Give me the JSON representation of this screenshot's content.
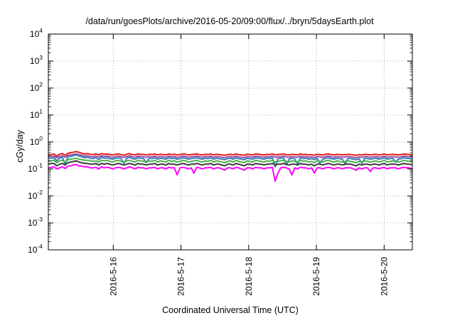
{
  "chart_data": {
    "type": "line",
    "title": "/data/run/goesPlots/archive/2016-05-20/09:00/flux/../bryn/5daysEarth.plot",
    "xlabel": "Coordinated Universal Time (UTC)",
    "ylabel": "cGy/day",
    "y_scale": "log",
    "ylim": [
      0.0001,
      10000
    ],
    "y_ticks": [
      {
        "base": "10",
        "exp": "-4",
        "value": 0.0001
      },
      {
        "base": "10",
        "exp": "-3",
        "value": 0.001
      },
      {
        "base": "10",
        "exp": "-2",
        "value": 0.01
      },
      {
        "base": "10",
        "exp": "-1",
        "value": 0.1
      },
      {
        "base": "10",
        "exp": "0",
        "value": 1
      },
      {
        "base": "10",
        "exp": "1",
        "value": 10
      },
      {
        "base": "10",
        "exp": "2",
        "value": 100
      },
      {
        "base": "10",
        "exp": "3",
        "value": 1000
      },
      {
        "base": "10",
        "exp": "4",
        "value": 10000
      }
    ],
    "xlim": [
      "2016-05-15 01:00",
      "2016-05-20 10:00"
    ],
    "x_ticks": [
      "2016-5-16",
      "2016-5-17",
      "2016-5-18",
      "2016-5-19",
      "2016-5-20"
    ],
    "grid": true,
    "series": [
      {
        "color": "#e41a1c",
        "base": 0.33,
        "step_hours": 1,
        "values": [
          0.33,
          0.34,
          0.36,
          0.3,
          0.35,
          0.37,
          0.32,
          0.38,
          0.4,
          0.42,
          0.44,
          0.41,
          0.38,
          0.36,
          0.37,
          0.35,
          0.34,
          0.36,
          0.33,
          0.37,
          0.35,
          0.36,
          0.34,
          0.33,
          0.35,
          0.36,
          0.34,
          0.32,
          0.35,
          0.37,
          0.34,
          0.33,
          0.36,
          0.35,
          0.34,
          0.33,
          0.35,
          0.34,
          0.36,
          0.33,
          0.35,
          0.34,
          0.33,
          0.36,
          0.34,
          0.35,
          0.33,
          0.34,
          0.36,
          0.35,
          0.33,
          0.34,
          0.35,
          0.36,
          0.34,
          0.33,
          0.35,
          0.34,
          0.36,
          0.33,
          0.35,
          0.34,
          0.33,
          0.32,
          0.34,
          0.35,
          0.33,
          0.36,
          0.34,
          0.33,
          0.32,
          0.35,
          0.34,
          0.33,
          0.36,
          0.35,
          0.34,
          0.33,
          0.35,
          0.34,
          0.36,
          0.33,
          0.34,
          0.35,
          0.36,
          0.34,
          0.33,
          0.35,
          0.34,
          0.33,
          0.36,
          0.34,
          0.35,
          0.33,
          0.34,
          0.32,
          0.35,
          0.34,
          0.33,
          0.35,
          0.36,
          0.34,
          0.33,
          0.35,
          0.34,
          0.33,
          0.34,
          0.35,
          0.34,
          0.33,
          0.32,
          0.34,
          0.33,
          0.35,
          0.34,
          0.33,
          0.34,
          0.35,
          0.33,
          0.34,
          0.36,
          0.33,
          0.34,
          0.35,
          0.34,
          0.33,
          0.34,
          0.36,
          0.35,
          0.34,
          0.33
        ]
      },
      {
        "color": "#984ea3",
        "base": 0.28,
        "step_hours": 1,
        "values": [
          0.28,
          0.29,
          0.3,
          0.26,
          0.29,
          0.31,
          0.27,
          0.32,
          0.33,
          0.35,
          0.36,
          0.34,
          0.32,
          0.3,
          0.31,
          0.29,
          0.28,
          0.3,
          0.27,
          0.31,
          0.29,
          0.3,
          0.28,
          0.27,
          0.29,
          0.3,
          0.28,
          0.27,
          0.29,
          0.31,
          0.28,
          0.27,
          0.3,
          0.29,
          0.28,
          0.27,
          0.29,
          0.28,
          0.3,
          0.27,
          0.29,
          0.28,
          0.27,
          0.3,
          0.28,
          0.29,
          0.27,
          0.28,
          0.3,
          0.29,
          0.27,
          0.28,
          0.29,
          0.3,
          0.28,
          0.27,
          0.29,
          0.28,
          0.3,
          0.27,
          0.29,
          0.28,
          0.27,
          0.26,
          0.28,
          0.29,
          0.27,
          0.3,
          0.28,
          0.27,
          0.26,
          0.29,
          0.28,
          0.27,
          0.3,
          0.29,
          0.28,
          0.27,
          0.29,
          0.28,
          0.3,
          0.27,
          0.28,
          0.29,
          0.3,
          0.28,
          0.27,
          0.29,
          0.28,
          0.27,
          0.3,
          0.28,
          0.29,
          0.27,
          0.28,
          0.26,
          0.29,
          0.28,
          0.27,
          0.29,
          0.3,
          0.28,
          0.27,
          0.29,
          0.28,
          0.27,
          0.28,
          0.29,
          0.28,
          0.27,
          0.26,
          0.28,
          0.27,
          0.29,
          0.28,
          0.27,
          0.28,
          0.29,
          0.27,
          0.28,
          0.3,
          0.27,
          0.28,
          0.29,
          0.28,
          0.27,
          0.28,
          0.3,
          0.29,
          0.28,
          0.27
        ]
      },
      {
        "color": "#377eb8",
        "base": 0.24,
        "step_hours": 1,
        "values": [
          0.24,
          0.25,
          0.26,
          0.2,
          0.25,
          0.27,
          0.15,
          0.28,
          0.29,
          0.31,
          0.33,
          0.3,
          0.28,
          0.26,
          0.27,
          0.25,
          0.24,
          0.26,
          0.22,
          0.27,
          0.25,
          0.26,
          0.24,
          0.23,
          0.25,
          0.26,
          0.24,
          0.16,
          0.25,
          0.27,
          0.24,
          0.23,
          0.26,
          0.25,
          0.24,
          0.17,
          0.25,
          0.24,
          0.26,
          0.23,
          0.25,
          0.24,
          0.23,
          0.26,
          0.24,
          0.25,
          0.23,
          0.24,
          0.26,
          0.25,
          0.23,
          0.24,
          0.25,
          0.26,
          0.24,
          0.23,
          0.25,
          0.24,
          0.26,
          0.23,
          0.25,
          0.24,
          0.23,
          0.22,
          0.24,
          0.25,
          0.23,
          0.26,
          0.24,
          0.23,
          0.22,
          0.25,
          0.24,
          0.23,
          0.26,
          0.25,
          0.24,
          0.23,
          0.25,
          0.24,
          0.26,
          0.12,
          0.24,
          0.25,
          0.26,
          0.14,
          0.23,
          0.25,
          0.24,
          0.15,
          0.26,
          0.24,
          0.25,
          0.23,
          0.24,
          0.22,
          0.25,
          0.16,
          0.23,
          0.25,
          0.26,
          0.24,
          0.23,
          0.25,
          0.24,
          0.23,
          0.15,
          0.25,
          0.24,
          0.23,
          0.22,
          0.24,
          0.16,
          0.25,
          0.24,
          0.23,
          0.24,
          0.25,
          0.23,
          0.24,
          0.26,
          0.23,
          0.24,
          0.25,
          0.18,
          0.23,
          0.24,
          0.26,
          0.25,
          0.24,
          0.23
        ]
      },
      {
        "color": "#4daf4a",
        "base": 0.19,
        "step_hours": 1,
        "values": [
          0.19,
          0.2,
          0.21,
          0.17,
          0.2,
          0.21,
          0.18,
          0.22,
          0.23,
          0.24,
          0.25,
          0.23,
          0.22,
          0.21,
          0.21,
          0.2,
          0.19,
          0.2,
          0.18,
          0.21,
          0.2,
          0.21,
          0.19,
          0.18,
          0.2,
          0.21,
          0.19,
          0.18,
          0.2,
          0.21,
          0.19,
          0.18,
          0.21,
          0.2,
          0.19,
          0.18,
          0.2,
          0.19,
          0.21,
          0.18,
          0.2,
          0.19,
          0.18,
          0.21,
          0.19,
          0.2,
          0.18,
          0.19,
          0.21,
          0.2,
          0.18,
          0.19,
          0.2,
          0.21,
          0.19,
          0.18,
          0.2,
          0.19,
          0.21,
          0.18,
          0.2,
          0.19,
          0.18,
          0.17,
          0.19,
          0.2,
          0.18,
          0.21,
          0.19,
          0.18,
          0.17,
          0.2,
          0.19,
          0.18,
          0.21,
          0.2,
          0.19,
          0.18,
          0.2,
          0.19,
          0.21,
          0.18,
          0.19,
          0.2,
          0.21,
          0.19,
          0.18,
          0.2,
          0.19,
          0.18,
          0.21,
          0.19,
          0.2,
          0.18,
          0.19,
          0.17,
          0.2,
          0.19,
          0.18,
          0.2,
          0.21,
          0.19,
          0.18,
          0.2,
          0.19,
          0.18,
          0.19,
          0.2,
          0.19,
          0.18,
          0.17,
          0.19,
          0.18,
          0.2,
          0.19,
          0.18,
          0.19,
          0.2,
          0.18,
          0.19,
          0.21,
          0.18,
          0.19,
          0.2,
          0.19,
          0.18,
          0.19,
          0.21,
          0.2,
          0.19,
          0.18
        ]
      },
      {
        "color": "#3a3a3a",
        "base": 0.15,
        "step_hours": 1,
        "values": [
          0.15,
          0.16,
          0.16,
          0.13,
          0.15,
          0.16,
          0.14,
          0.17,
          0.18,
          0.19,
          0.2,
          0.18,
          0.17,
          0.16,
          0.16,
          0.15,
          0.15,
          0.16,
          0.14,
          0.16,
          0.15,
          0.16,
          0.15,
          0.14,
          0.15,
          0.16,
          0.15,
          0.14,
          0.15,
          0.16,
          0.15,
          0.14,
          0.16,
          0.15,
          0.15,
          0.14,
          0.15,
          0.15,
          0.16,
          0.14,
          0.15,
          0.15,
          0.14,
          0.16,
          0.15,
          0.15,
          0.14,
          0.15,
          0.16,
          0.15,
          0.14,
          0.15,
          0.15,
          0.16,
          0.15,
          0.14,
          0.15,
          0.15,
          0.16,
          0.14,
          0.15,
          0.15,
          0.14,
          0.13,
          0.15,
          0.15,
          0.14,
          0.16,
          0.15,
          0.14,
          0.13,
          0.15,
          0.15,
          0.14,
          0.16,
          0.15,
          0.15,
          0.14,
          0.15,
          0.15,
          0.16,
          0.14,
          0.15,
          0.15,
          0.16,
          0.15,
          0.14,
          0.15,
          0.15,
          0.14,
          0.16,
          0.15,
          0.15,
          0.14,
          0.15,
          0.13,
          0.15,
          0.15,
          0.14,
          0.15,
          0.16,
          0.15,
          0.14,
          0.15,
          0.15,
          0.14,
          0.15,
          0.15,
          0.15,
          0.14,
          0.13,
          0.15,
          0.14,
          0.15,
          0.15,
          0.14,
          0.15,
          0.15,
          0.14,
          0.15,
          0.16,
          0.14,
          0.15,
          0.15,
          0.15,
          0.14,
          0.15,
          0.16,
          0.15,
          0.15,
          0.14
        ]
      },
      {
        "color": "#ff00ff",
        "base": 0.11,
        "step_hours": 1,
        "values": [
          0.11,
          0.115,
          0.12,
          0.1,
          0.11,
          0.12,
          0.105,
          0.125,
          0.13,
          0.14,
          0.145,
          0.13,
          0.125,
          0.12,
          0.12,
          0.11,
          0.11,
          0.115,
          0.1,
          0.12,
          0.11,
          0.115,
          0.11,
          0.1,
          0.11,
          0.115,
          0.11,
          0.1,
          0.11,
          0.12,
          0.11,
          0.1,
          0.115,
          0.11,
          0.11,
          0.1,
          0.11,
          0.11,
          0.115,
          0.1,
          0.11,
          0.11,
          0.1,
          0.115,
          0.11,
          0.11,
          0.06,
          0.11,
          0.115,
          0.11,
          0.1,
          0.11,
          0.07,
          0.115,
          0.11,
          0.1,
          0.11,
          0.11,
          0.115,
          0.1,
          0.11,
          0.11,
          0.1,
          0.09,
          0.11,
          0.11,
          0.1,
          0.115,
          0.11,
          0.1,
          0.09,
          0.11,
          0.11,
          0.1,
          0.115,
          0.11,
          0.11,
          0.1,
          0.11,
          0.11,
          0.115,
          0.035,
          0.07,
          0.11,
          0.115,
          0.11,
          0.1,
          0.06,
          0.11,
          0.1,
          0.115,
          0.11,
          0.11,
          0.1,
          0.11,
          0.07,
          0.11,
          0.11,
          0.1,
          0.11,
          0.115,
          0.11,
          0.1,
          0.11,
          0.11,
          0.1,
          0.11,
          0.11,
          0.11,
          0.1,
          0.09,
          0.11,
          0.1,
          0.11,
          0.11,
          0.08,
          0.11,
          0.11,
          0.1,
          0.11,
          0.115,
          0.1,
          0.11,
          0.11,
          0.11,
          0.1,
          0.11,
          0.115,
          0.11,
          0.11,
          0.1
        ]
      }
    ]
  }
}
